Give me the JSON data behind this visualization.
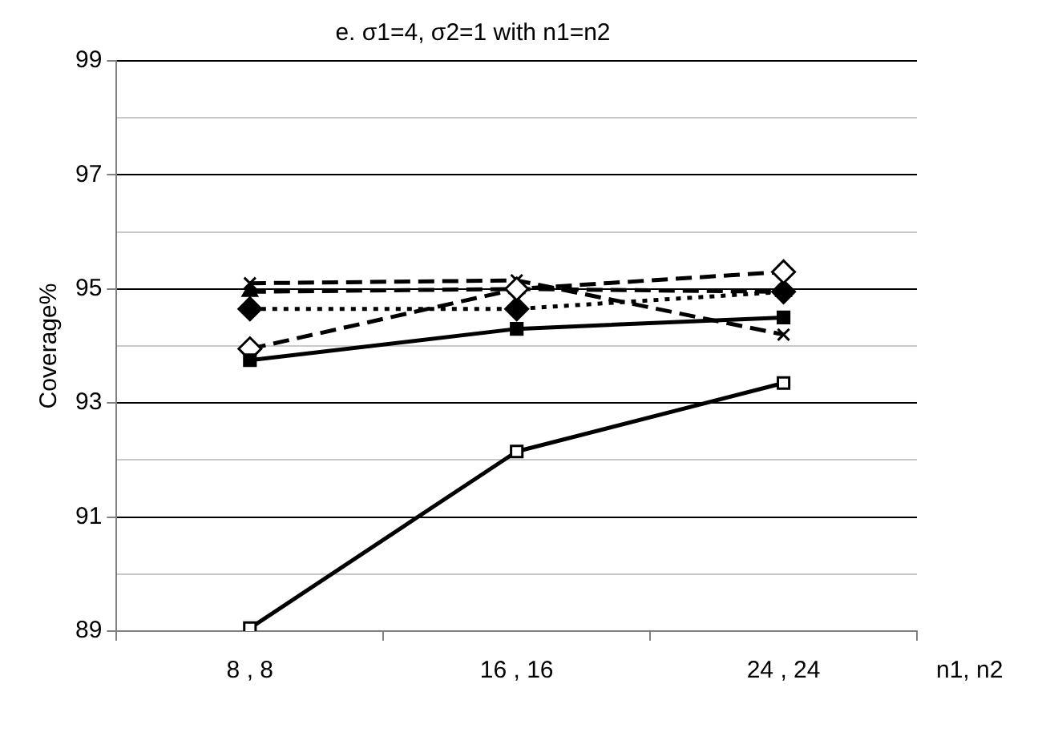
{
  "chart_data": {
    "type": "line",
    "title": "e. σ1=4, σ2=1 with n1=n2",
    "xlabel": "n1, n2",
    "ylabel": "Coverage%",
    "categories": [
      "8 , 8",
      "16 , 16",
      "24 , 24"
    ],
    "ylim": [
      89,
      99
    ],
    "yticks": [
      89,
      {
        "value": 90,
        "label": null
      },
      91,
      {
        "value": 92,
        "label": null
      },
      93,
      {
        "value": 94,
        "label": null
      },
      95,
      {
        "value": 96,
        "label": null
      },
      97,
      {
        "value": 98,
        "label": null
      },
      99
    ],
    "grid": "y",
    "legend": false,
    "series": [
      {
        "color": "#000000",
        "marker": "square",
        "line_style": "solid",
        "values": [
          89.05,
          92.15,
          93.35
        ]
      },
      {
        "color": "#000000",
        "marker": "square",
        "line_style": "solid",
        "values": [
          93.75,
          94.3,
          94.5
        ]
      },
      {
        "color": "#000000",
        "marker": "diamond",
        "line_style": "dashed",
        "values": [
          93.95,
          95.0,
          95.3
        ]
      },
      {
        "color": "#000000",
        "marker": "cross",
        "line_style": "dashed",
        "values": [
          95.1,
          95.15,
          94.2
        ]
      },
      {
        "color": "#000000",
        "marker": "diamond",
        "line_style": "dotted",
        "values": [
          94.65,
          94.65,
          94.95
        ]
      },
      {
        "color": "#000000",
        "marker": "triangle",
        "line_style": "dashed",
        "values": [
          94.95,
          95.0,
          94.95
        ]
      }
    ]
  }
}
